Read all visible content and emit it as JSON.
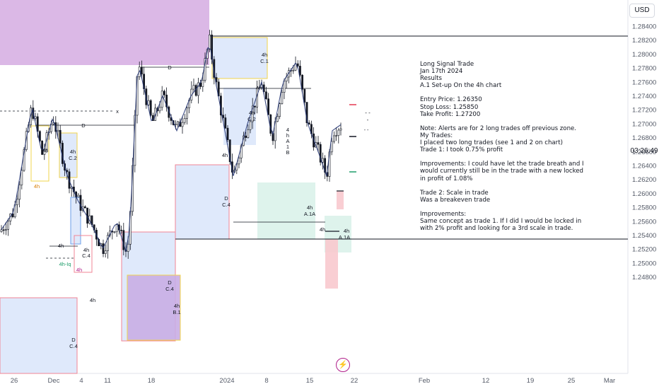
{
  "currency_button": "USD",
  "countdown": "03:26:49",
  "colors": {
    "candle": "#131722",
    "wick": "#131722",
    "purple_zone": "#d7b0e3",
    "blue_zone": "#dbe7fb",
    "green_zone": "#daf2ea",
    "red_zone": "#f8c9ce",
    "yellow_border": "#f2d44c",
    "red_border": "#f08595",
    "blue_border": "#6d9fe8",
    "green_text": "#1f9e6b",
    "orange_text": "#d9820c",
    "ma_line": "#1c2e6e"
  },
  "note": {
    "lines": [
      "Long Signal Trade",
      "Jan 17th 2024",
      "Results",
      "A.1 Set-up On the 4h chart",
      "",
      "Entry Price: 1.26350",
      "Stop Loss: 1.25850",
      "Take Profit:  1.27200",
      "",
      "Note: Alerts are for 2 long trades off previous zone.",
      "My Trades:",
      "I placed two long trades (see 1 and 2 on chart)",
      "Trade 1: I took 0.75% profit",
      "",
      "Improvements: I could have let the trade breath and I",
      "would currently still be in the trade with a new locked",
      "in profit of 1.08%",
      "",
      "Trade 2: Scale in trade",
      "Was a breakeven trade",
      "",
      "Improvements:",
      "Same concept as trade 1. If I did I would be locked in",
      "with 2% profit and looking for a 3rd scale in trade."
    ]
  },
  "chart_data": {
    "type": "candlestick",
    "instrument_currency": "USD",
    "y_axis_ticks": [
      "1.28400",
      "1.28200",
      "1.28000",
      "1.27800",
      "1.27600",
      "1.27400",
      "1.27200",
      "1.27000",
      "1.26800",
      "1.26600",
      "1.26400",
      "1.26200",
      "1.26000",
      "1.25800",
      "1.25600",
      "1.25400",
      "1.25200",
      "1.25000",
      "1.24800"
    ],
    "ylim": [
      1.2475,
      1.2852
    ],
    "x_axis_ticks": [
      "26",
      "Dec",
      "4",
      "11",
      "18",
      "2024",
      "8",
      "15",
      "22",
      "Feb",
      "12",
      "19",
      "25",
      "Mar"
    ],
    "trade": {
      "entry": 1.2635,
      "stop_loss": 1.2585,
      "take_profit": 1.272
    },
    "zone_labels": [
      "4h C.1",
      "4h C.2",
      "4h C.2",
      "D C.4",
      "4h A.1A",
      "4h A.1A",
      "4h B.1",
      "D C.4",
      "D C.4",
      "4h C.4",
      "4h",
      "4h",
      "4h",
      "4h",
      "4h",
      "4h",
      "4h-Iq",
      "4h",
      "4h",
      "D",
      "D",
      "x",
      "4h A 1 B"
    ]
  }
}
